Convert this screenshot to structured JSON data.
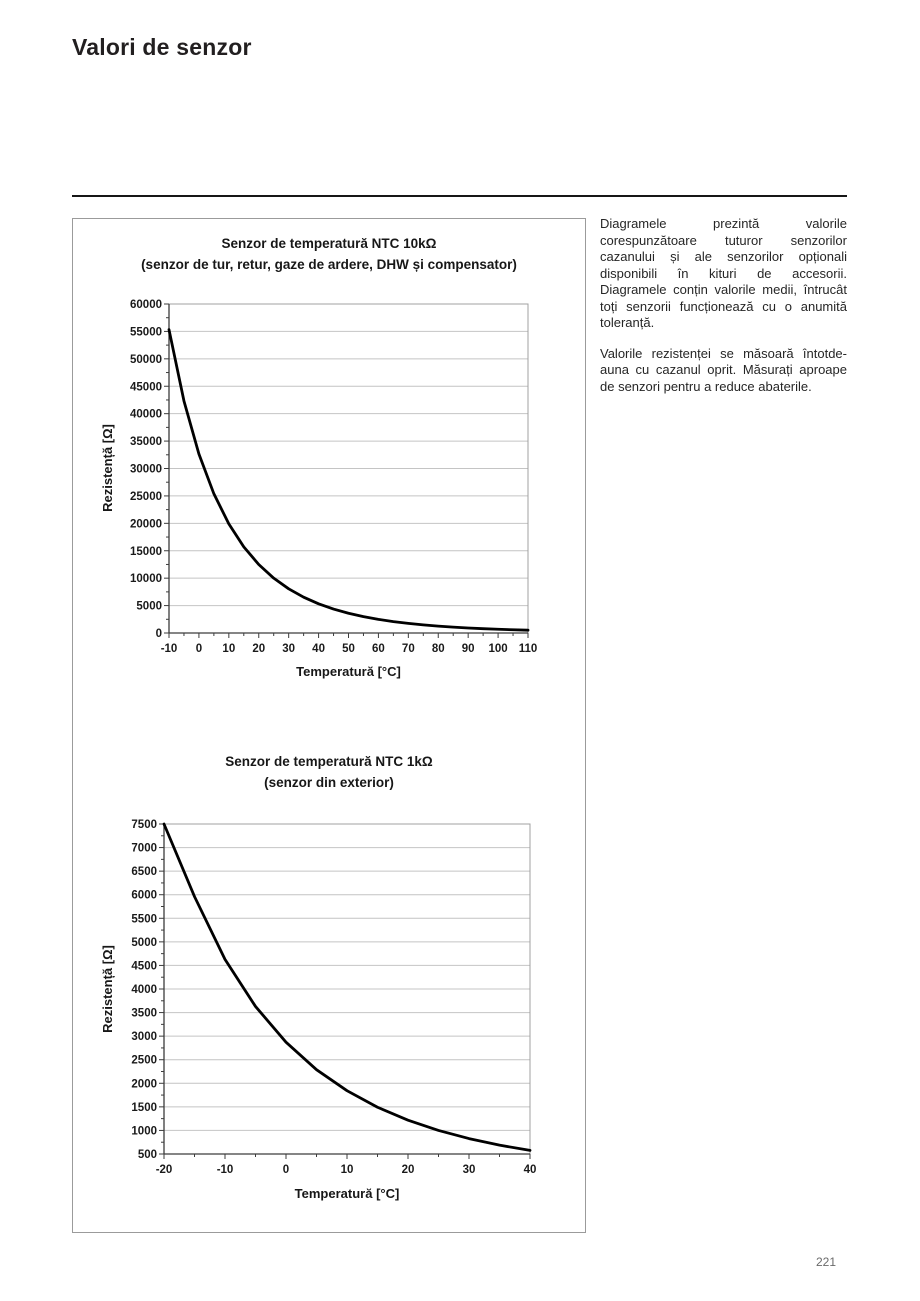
{
  "page": {
    "title": "Valori de senzor",
    "page_number": "221"
  },
  "side_text": {
    "paragraph1": "Diagramele prezintă valorile corespunzătoare tuturor senzorilor cazanului și ale senzorilor opționali disponibili în kituri de accesorii. Diagramele conțin valorile medii, întrucât toți senzorii funcționează cu o anumită toleranță.",
    "paragraph2": "Valorile rezistenței se măsoară întotde­auna cu cazanul oprit. Măsurați aproape de senzori pentru a reduce abaterile."
  },
  "colors": {
    "curve": "#000000",
    "grid": "#c4c4c4",
    "plot_border": "#a0a0a0",
    "axis": "#3c3c3c",
    "text": "#1a1a1a",
    "page_number": "#6a6a6a"
  },
  "chart_data": [
    {
      "type": "line",
      "title": "Senzor de temperatură NTC 10kΩ",
      "subtitle": "(senzor de tur, retur, gaze de ardere, DHW și compensator)",
      "xlabel": "Temperatură [°C]",
      "ylabel": "Rezistență [Ω]",
      "xlim": [
        -10,
        110
      ],
      "ylim": [
        0,
        60000
      ],
      "x_ticks": [
        -10,
        0,
        10,
        20,
        30,
        40,
        50,
        60,
        70,
        80,
        90,
        100,
        110
      ],
      "y_ticks": [
        0,
        5000,
        10000,
        15000,
        20000,
        25000,
        30000,
        35000,
        40000,
        45000,
        50000,
        55000,
        60000
      ],
      "grid": "horizontal",
      "legend": "none",
      "line_color": "#000000",
      "x": [
        -10,
        -5,
        0,
        5,
        10,
        15,
        20,
        25,
        30,
        35,
        40,
        45,
        50,
        55,
        60,
        65,
        70,
        75,
        80,
        85,
        90,
        95,
        100,
        105,
        110
      ],
      "y": [
        55330,
        42315,
        32650,
        25385,
        19900,
        15708,
        12490,
        10000,
        8057,
        6531,
        5327,
        4369,
        3603,
        2986,
        2488,
        2083,
        1752,
        1481,
        1258,
        1072,
        918,
        788,
        680,
        588,
        511
      ]
    },
    {
      "type": "line",
      "title": "Senzor de temperatură NTC 1kΩ",
      "subtitle": "(senzor din exterior)",
      "xlabel": "Temperatură [°C]",
      "ylabel": "Rezistență [Ω]",
      "xlim": [
        -20,
        40
      ],
      "ylim": [
        500,
        7500
      ],
      "x_ticks": [
        -20,
        -10,
        0,
        10,
        20,
        30,
        40
      ],
      "y_ticks": [
        500,
        1000,
        1500,
        2000,
        2500,
        3000,
        3500,
        4000,
        4500,
        5000,
        5500,
        6000,
        6500,
        7000,
        7500
      ],
      "grid": "horizontal",
      "legend": "none",
      "line_color": "#000000",
      "x": [
        -20,
        -15,
        -10,
        -5,
        0,
        5,
        10,
        15,
        20,
        25,
        30,
        35,
        40
      ],
      "y": [
        7500,
        5961,
        4628,
        3630,
        2872,
        2289,
        1843,
        1492,
        1217,
        1000,
        827,
        688,
        576
      ]
    }
  ]
}
